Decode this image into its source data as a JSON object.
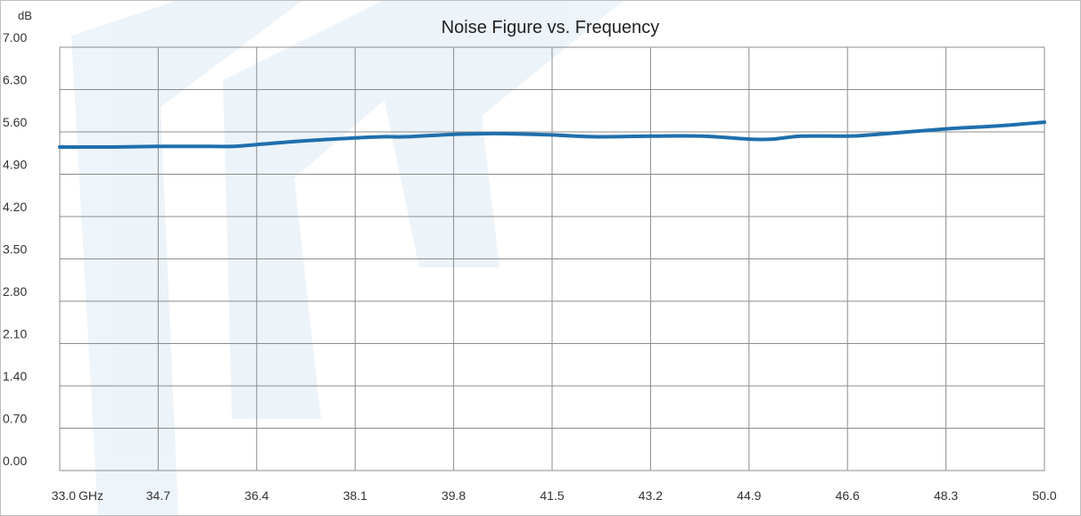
{
  "chart_data": {
    "type": "line",
    "title": "Noise Figure vs. Frequency",
    "ylabel": "dB",
    "xlabel": "",
    "x_unit_label": "GHz",
    "ylim": [
      0,
      7.0
    ],
    "xlim": [
      33.0,
      50.0
    ],
    "y_ticks": [
      "0.00",
      "0.70",
      "1.40",
      "2.10",
      "2.80",
      "3.50",
      "4.20",
      "4.90",
      "5.60",
      "6.30",
      "7.00"
    ],
    "x_ticks": [
      "33.0",
      "34.7",
      "36.4",
      "38.1",
      "39.8",
      "41.5",
      "43.2",
      "44.9",
      "46.6",
      "48.3",
      "50.0"
    ],
    "grid": true,
    "legend": "none",
    "series": [
      {
        "color": "#1f6fad",
        "x": [
          33.0,
          33.9,
          34.7,
          35.6,
          36.0,
          36.4,
          37.2,
          38.1,
          38.6,
          39.0,
          39.8,
          40.3,
          40.7,
          41.5,
          42.2,
          43.2,
          44.1,
          44.9,
          45.3,
          45.8,
          46.6,
          47.0,
          48.3,
          49.2,
          50.0
        ],
        "y": [
          5.35,
          5.35,
          5.36,
          5.36,
          5.36,
          5.39,
          5.45,
          5.5,
          5.52,
          5.52,
          5.56,
          5.57,
          5.57,
          5.55,
          5.52,
          5.53,
          5.53,
          5.48,
          5.48,
          5.53,
          5.53,
          5.55,
          5.65,
          5.7,
          5.76
        ]
      }
    ]
  }
}
